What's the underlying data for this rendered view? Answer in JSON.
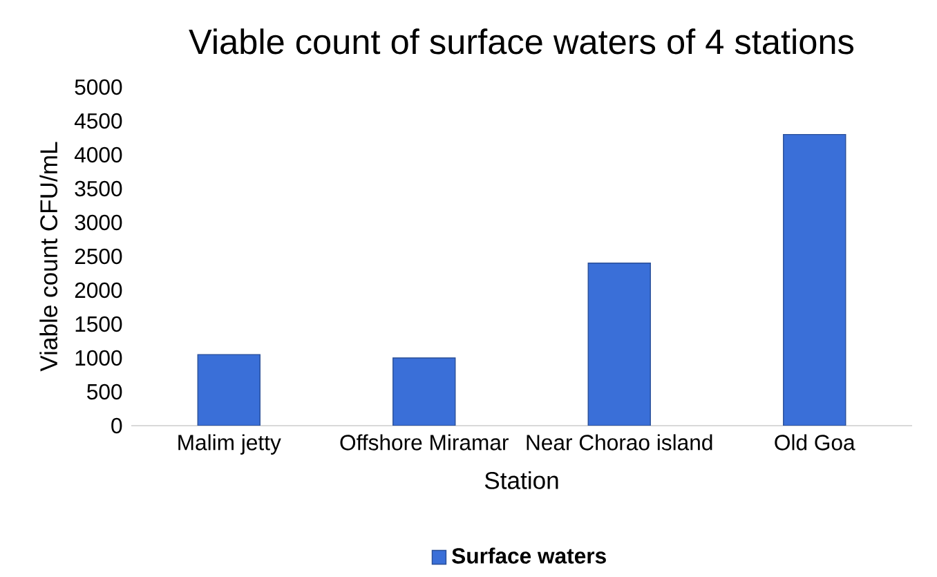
{
  "chart_data": {
    "type": "bar",
    "title": "Viable count of surface waters of 4 stations",
    "xlabel": "Station",
    "ylabel": "Viable count CFU/mL",
    "categories": [
      "Malim jetty",
      "Offshore Miramar",
      "Near Chorao island",
      "Old Goa"
    ],
    "series": [
      {
        "name": "Surface waters",
        "color": "#3a6fd8",
        "values": [
          1050,
          1000,
          2400,
          4300
        ]
      }
    ],
    "ylim": [
      0,
      5000
    ],
    "yticks": [
      0,
      500,
      1000,
      1500,
      2000,
      2500,
      3000,
      3500,
      4000,
      4500,
      5000
    ],
    "grid": false,
    "legend": "bottom"
  }
}
